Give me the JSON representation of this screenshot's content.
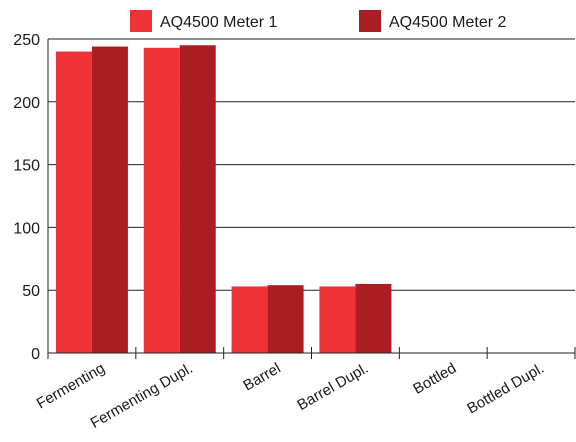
{
  "chart_data": {
    "type": "bar",
    "categories": [
      "Fermenting",
      "Fermenting Dupl.",
      "Barrel",
      "Barrel Dupl.",
      "Bottled",
      "Bottled Dupl."
    ],
    "series": [
      {
        "name": "AQ4500 Meter 1",
        "color": "#ee3338",
        "values": [
          240,
          243,
          53,
          53,
          0,
          0
        ]
      },
      {
        "name": "AQ4500 Meter 2",
        "color": "#a81e23",
        "values": [
          244,
          245,
          54,
          55,
          0,
          0
        ]
      }
    ],
    "ylim": [
      0,
      250
    ],
    "yticks": [
      0,
      50,
      100,
      150,
      200,
      250
    ],
    "grid": true,
    "legend_position": "top"
  }
}
